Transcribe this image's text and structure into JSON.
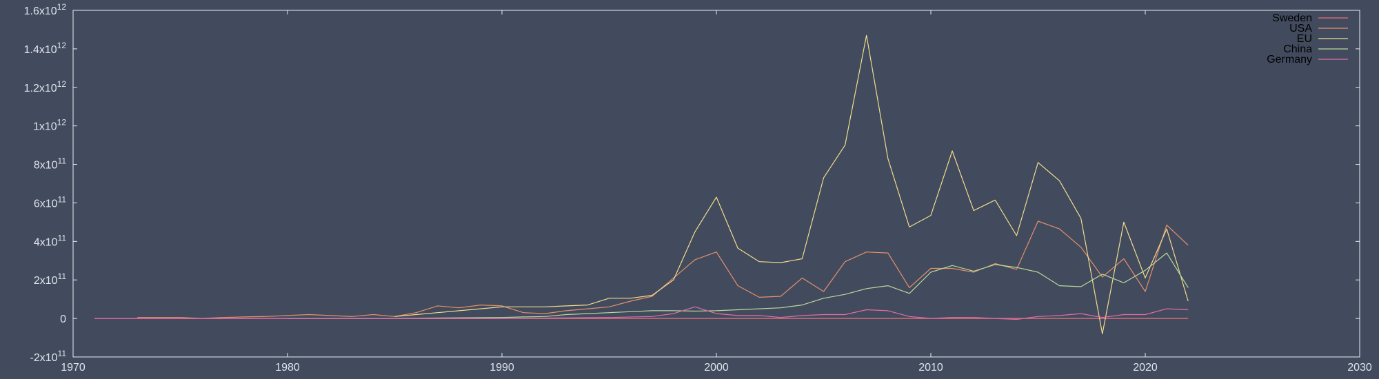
{
  "chart_data": {
    "type": "line",
    "title": "",
    "xlabel": "",
    "ylabel": "",
    "xlim": [
      1970,
      2030
    ],
    "ylim": [
      -200000000000,
      1600000000000
    ],
    "grid": false,
    "legend_position": "top-right",
    "x_ticks": [
      {
        "value": 1970,
        "label": "1970"
      },
      {
        "value": 1980,
        "label": "1980"
      },
      {
        "value": 1990,
        "label": "1990"
      },
      {
        "value": 2000,
        "label": "2000"
      },
      {
        "value": 2010,
        "label": "2010"
      },
      {
        "value": 2020,
        "label": "2020"
      },
      {
        "value": 2030,
        "label": "2030"
      }
    ],
    "y_ticks": [
      {
        "value": -200000000000,
        "mantissa": "-2x10",
        "exp": "11"
      },
      {
        "value": 0,
        "mantissa": "0",
        "exp": ""
      },
      {
        "value": 200000000000,
        "mantissa": "2x10",
        "exp": "11"
      },
      {
        "value": 400000000000,
        "mantissa": "4x10",
        "exp": "11"
      },
      {
        "value": 600000000000,
        "mantissa": "6x10",
        "exp": "11"
      },
      {
        "value": 800000000000,
        "mantissa": "8x10",
        "exp": "11"
      },
      {
        "value": 1000000000000,
        "mantissa": "1x10",
        "exp": "12"
      },
      {
        "value": 1200000000000,
        "mantissa": "1.2x10",
        "exp": "12"
      },
      {
        "value": 1400000000000,
        "mantissa": "1.4x10",
        "exp": "12"
      },
      {
        "value": 1600000000000,
        "mantissa": "1.6x10",
        "exp": "12"
      }
    ],
    "series": [
      {
        "name": "Sweden",
        "color": "#e8727a",
        "x": [
          1971,
          1972,
          1973,
          1974,
          1975,
          1976,
          1977,
          1978,
          1979,
          1980,
          1981,
          1982,
          1983,
          1984,
          1985,
          1986,
          1987,
          1988,
          1989,
          1990,
          1991,
          1992,
          1993,
          1994,
          1995,
          1996,
          1997,
          1998,
          1999,
          2000,
          2001,
          2002,
          2003,
          2004,
          2005,
          2006,
          2007,
          2008,
          2009,
          2010,
          2011,
          2012,
          2013,
          2014,
          2015,
          2016,
          2017,
          2018,
          2019,
          2020,
          2021,
          2022
        ],
        "values": [
          0,
          0,
          0,
          0,
          0,
          0,
          0,
          0,
          0,
          0,
          0,
          0,
          0,
          0,
          0,
          0,
          0,
          0,
          0,
          0,
          0,
          0,
          0,
          0,
          0,
          0,
          0,
          0,
          0,
          0,
          0,
          0,
          0,
          0,
          0,
          0,
          0,
          0,
          0,
          0,
          0,
          0,
          0,
          0,
          0,
          0,
          0,
          0,
          0,
          0,
          0,
          0
        ]
      },
      {
        "name": "USA",
        "color": "#e6906a",
        "x": [
          1973,
          1974,
          1975,
          1976,
          1977,
          1978,
          1979,
          1980,
          1981,
          1982,
          1983,
          1984,
          1985,
          1986,
          1987,
          1988,
          1989,
          1990,
          1991,
          1992,
          1993,
          1994,
          1995,
          1996,
          1997,
          1998,
          1999,
          2000,
          2001,
          2002,
          2003,
          2004,
          2005,
          2006,
          2007,
          2008,
          2009,
          2010,
          2011,
          2012,
          2013,
          2014,
          2015,
          2016,
          2017,
          2018,
          2019,
          2020,
          2021,
          2022
        ],
        "values": [
          5000000000.0,
          5000000000.0,
          5000000000.0,
          0,
          5000000000.0,
          8000000000.0,
          10000000000.0,
          15000000000.0,
          20000000000.0,
          15000000000.0,
          10000000000.0,
          20000000000.0,
          10000000000.0,
          30000000000.0,
          65000000000.0,
          55000000000.0,
          70000000000.0,
          65000000000.0,
          30000000000.0,
          25000000000.0,
          40000000000.0,
          50000000000.0,
          60000000000.0,
          90000000000.0,
          115000000000.0,
          210000000000.0,
          305000000000.0,
          345000000000.0,
          170000000000.0,
          110000000000.0,
          115000000000.0,
          210000000000.0,
          140000000000.0,
          295000000000.0,
          345000000000.0,
          340000000000.0,
          160000000000.0,
          260000000000.0,
          260000000000.0,
          240000000000.0,
          285000000000.0,
          255000000000.0,
          505000000000.0,
          465000000000.0,
          370000000000.0,
          215000000000.0,
          310000000000.0,
          140000000000.0,
          485000000000.0,
          380000000000.0
        ]
      },
      {
        "name": "EU",
        "color": "#f3dc8c",
        "x": [
          1985,
          1986,
          1987,
          1988,
          1989,
          1990,
          1991,
          1992,
          1993,
          1994,
          1995,
          1996,
          1997,
          1998,
          1999,
          2000,
          2001,
          2002,
          2003,
          2004,
          2005,
          2006,
          2007,
          2008,
          2009,
          2010,
          2011,
          2012,
          2013,
          2014,
          2015,
          2016,
          2017,
          2018,
          2019,
          2020,
          2021,
          2022
        ],
        "values": [
          10000000000.0,
          20000000000.0,
          30000000000.0,
          40000000000.0,
          50000000000.0,
          60000000000.0,
          60000000000.0,
          60000000000.0,
          65000000000.0,
          70000000000.0,
          105000000000.0,
          105000000000.0,
          120000000000.0,
          200000000000.0,
          450000000000.0,
          630000000000.0,
          365000000000.0,
          295000000000.0,
          290000000000.0,
          310000000000.0,
          730000000000.0,
          900000000000.0,
          1470000000000.0,
          830000000000.0,
          475000000000.0,
          535000000000.0,
          870000000000.0,
          560000000000.0,
          615000000000.0,
          430000000000.0,
          810000000000.0,
          715000000000.0,
          520000000000.0,
          -80000000000.0,
          500000000000.0,
          210000000000.0,
          465000000000.0,
          90000000000.0
        ]
      },
      {
        "name": "China",
        "color": "#b9d99a",
        "x": [
          1980,
          1985,
          1990,
          1991,
          1992,
          1993,
          1994,
          1995,
          1996,
          1997,
          1998,
          1999,
          2000,
          2001,
          2002,
          2003,
          2004,
          2005,
          2006,
          2007,
          2008,
          2009,
          2010,
          2011,
          2012,
          2013,
          2014,
          2015,
          2016,
          2017,
          2018,
          2019,
          2020,
          2021,
          2022
        ],
        "values": [
          0,
          0,
          5000000000.0,
          8000000000.0,
          10000000000.0,
          20000000000.0,
          25000000000.0,
          30000000000.0,
          35000000000.0,
          40000000000.0,
          40000000000.0,
          38000000000.0,
          40000000000.0,
          45000000000.0,
          50000000000.0,
          55000000000.0,
          70000000000.0,
          105000000000.0,
          125000000000.0,
          155000000000.0,
          170000000000.0,
          130000000000.0,
          240000000000.0,
          275000000000.0,
          245000000000.0,
          280000000000.0,
          265000000000.0,
          240000000000.0,
          170000000000.0,
          165000000000.0,
          230000000000.0,
          185000000000.0,
          250000000000.0,
          340000000000.0,
          160000000000.0
        ]
      },
      {
        "name": "Germany",
        "color": "#e36ca4",
        "x": [
          1971,
          1980,
          1990,
          1995,
          1997,
          1998,
          1999,
          2000,
          2001,
          2002,
          2003,
          2004,
          2005,
          2006,
          2007,
          2008,
          2009,
          2010,
          2011,
          2012,
          2013,
          2014,
          2015,
          2016,
          2017,
          2018,
          2019,
          2020,
          2021,
          2022
        ],
        "values": [
          0,
          0,
          0,
          5000000000.0,
          10000000000.0,
          25000000000.0,
          60000000000.0,
          25000000000.0,
          15000000000.0,
          15000000000.0,
          5000000000.0,
          15000000000.0,
          20000000000.0,
          20000000000.0,
          45000000000.0,
          40000000000.0,
          10000000000.0,
          0,
          5000000000.0,
          5000000000.0,
          0,
          -5000000000.0,
          10000000000.0,
          15000000000.0,
          25000000000.0,
          5000000000.0,
          20000000000.0,
          20000000000.0,
          50000000000.0,
          45000000000.0
        ]
      }
    ]
  }
}
